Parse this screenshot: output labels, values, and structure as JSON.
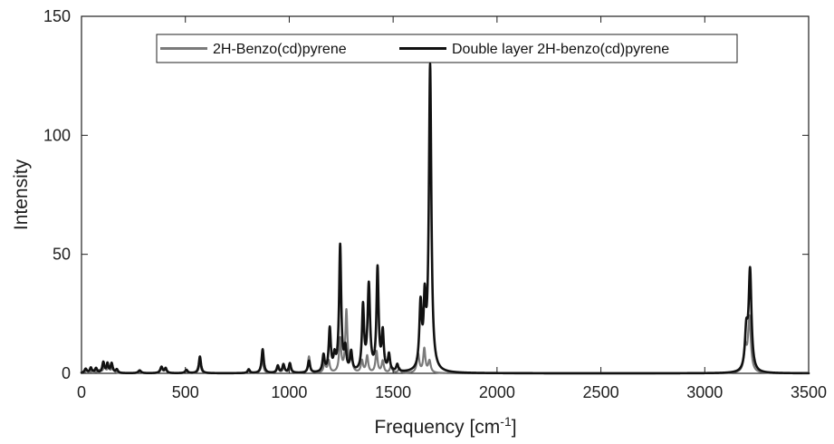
{
  "chart_data": {
    "type": "line",
    "title": "",
    "xlabel": "Frequency [cm",
    "xlabel_sup": "-1",
    "xlabel_suffix": "]",
    "ylabel": "Intensity",
    "xlim": [
      0,
      3500
    ],
    "ylim": [
      0,
      150
    ],
    "x_ticks": [
      0,
      500,
      1000,
      1500,
      2000,
      2500,
      3000,
      3500
    ],
    "y_ticks": [
      0,
      50,
      100,
      150
    ],
    "grid": false,
    "legend_position": "top-center",
    "series": [
      {
        "name": "2H-Benzo(cd)pyrene",
        "color": "#7a7a7a",
        "peaks": [
          [
            25,
            1.2,
            6
          ],
          [
            55,
            1.3,
            7
          ],
          [
            85,
            1.1,
            8
          ],
          [
            110,
            2.6,
            7
          ],
          [
            130,
            2.1,
            6
          ],
          [
            150,
            2.4,
            7
          ],
          [
            280,
            0.8,
            8
          ],
          [
            385,
            2.0,
            7
          ],
          [
            405,
            1.5,
            6
          ],
          [
            505,
            1.0,
            7
          ],
          [
            570,
            4.5,
            6
          ],
          [
            805,
            1.0,
            7
          ],
          [
            870,
            6.0,
            6
          ],
          [
            945,
            2.0,
            7
          ],
          [
            975,
            3.0,
            6
          ],
          [
            1005,
            2.0,
            7
          ],
          [
            1095,
            7.0,
            6
          ],
          [
            1170,
            4.0,
            6
          ],
          [
            1190,
            5.0,
            6
          ],
          [
            1245,
            14.0,
            6
          ],
          [
            1275,
            26.0,
            6
          ],
          [
            1300,
            6.0,
            6
          ],
          [
            1350,
            5.0,
            6
          ],
          [
            1375,
            7.0,
            6
          ],
          [
            1420,
            9.0,
            6
          ],
          [
            1450,
            5.0,
            6
          ],
          [
            1490,
            3.0,
            6
          ],
          [
            1530,
            2.0,
            6
          ],
          [
            1620,
            8.0,
            7
          ],
          [
            1650,
            10.0,
            6
          ],
          [
            1675,
            5.0,
            7
          ],
          [
            3195,
            10.0,
            8
          ],
          [
            3215,
            23.0,
            8
          ]
        ]
      },
      {
        "name": "Double layer 2H-benzo(cd)pyrene",
        "color": "#111111",
        "peaks": [
          [
            20,
            1.8,
            7
          ],
          [
            45,
            2.2,
            6
          ],
          [
            70,
            2.0,
            6
          ],
          [
            105,
            4.5,
            6
          ],
          [
            125,
            3.8,
            5
          ],
          [
            145,
            4.0,
            6
          ],
          [
            170,
            1.5,
            6
          ],
          [
            280,
            1.2,
            8
          ],
          [
            385,
            2.6,
            7
          ],
          [
            405,
            2.0,
            6
          ],
          [
            505,
            1.4,
            7
          ],
          [
            570,
            7.0,
            6
          ],
          [
            805,
            1.6,
            6
          ],
          [
            872,
            10.0,
            6
          ],
          [
            945,
            3.0,
            6
          ],
          [
            972,
            3.5,
            6
          ],
          [
            1003,
            4.0,
            6
          ],
          [
            1095,
            5.0,
            6
          ],
          [
            1165,
            7.0,
            6
          ],
          [
            1195,
            18.0,
            6
          ],
          [
            1218,
            6.0,
            6
          ],
          [
            1245,
            53.0,
            6
          ],
          [
            1270,
            9.0,
            6
          ],
          [
            1298,
            8.0,
            6
          ],
          [
            1355,
            27.0,
            6
          ],
          [
            1383,
            36.0,
            7
          ],
          [
            1425,
            43.0,
            6
          ],
          [
            1450,
            16.0,
            6
          ],
          [
            1480,
            7.0,
            6
          ],
          [
            1520,
            3.0,
            6
          ],
          [
            1632,
            27.0,
            7
          ],
          [
            1652,
            26.0,
            6
          ],
          [
            1678,
            128.0,
            7
          ],
          [
            3200,
            16.0,
            8
          ],
          [
            3218,
            42.0,
            8
          ]
        ]
      }
    ]
  }
}
